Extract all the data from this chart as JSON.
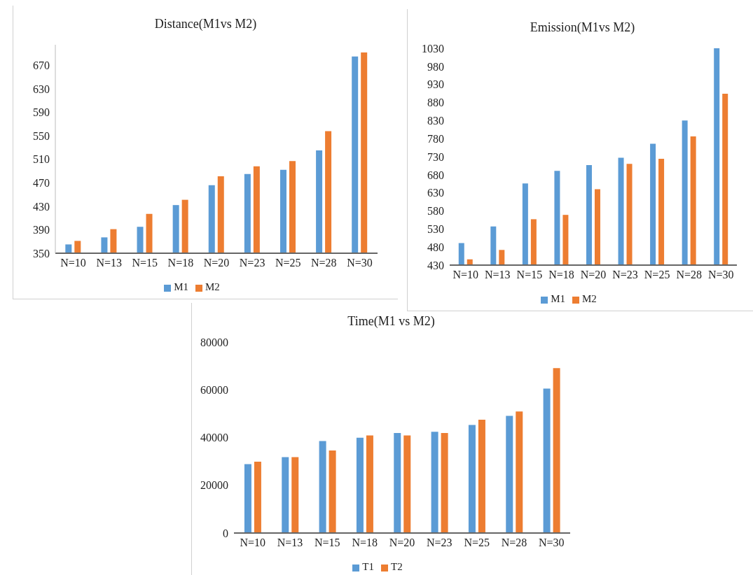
{
  "chart_data": [
    {
      "type": "bar",
      "title": "Distance(M1vs  M2)",
      "categories": [
        "N=10",
        "N=13",
        "N=15",
        "N=18",
        "N=20",
        "N=23",
        "N=25",
        "N=28",
        "N=30"
      ],
      "series": [
        {
          "name": "M1",
          "color": "#5b9bd5",
          "values": [
            365,
            377,
            395,
            432,
            466,
            485,
            492,
            525,
            685
          ]
        },
        {
          "name": "M2",
          "color": "#ed7d31",
          "values": [
            371,
            391,
            417,
            441,
            481,
            498,
            507,
            558,
            692
          ]
        }
      ],
      "ylim": [
        350,
        705
      ],
      "yticks": [
        350,
        390,
        430,
        470,
        510,
        550,
        590,
        630,
        670
      ],
      "grid": false,
      "legend": "bottom"
    },
    {
      "type": "bar",
      "title": "Emission(M1vs  M2)",
      "categories": [
        "N=10",
        "N=13",
        "N=15",
        "N=18",
        "N=20",
        "N=23",
        "N=25",
        "N=28",
        "N=30"
      ],
      "series": [
        {
          "name": "M1",
          "color": "#5b9bd5",
          "values": [
            491,
            537,
            656,
            691,
            707,
            727,
            766,
            830,
            1030
          ]
        },
        {
          "name": "M2",
          "color": "#ed7d31",
          "values": [
            446,
            472,
            557,
            569,
            640,
            710,
            724,
            786,
            904
          ]
        }
      ],
      "ylim": [
        430,
        1030
      ],
      "yticks": [
        430,
        480,
        530,
        580,
        630,
        680,
        730,
        780,
        830,
        880,
        930,
        980,
        1030
      ],
      "grid": false,
      "legend": "bottom"
    },
    {
      "type": "bar",
      "title": "Time(M1  vs M2)",
      "categories": [
        "N=10",
        "N=13",
        "N=15",
        "N=18",
        "N=20",
        "N=23",
        "N=25",
        "N=28",
        "N=30"
      ],
      "series": [
        {
          "name": "T1",
          "color": "#5b9bd5",
          "values": [
            28900,
            31800,
            38500,
            39900,
            41900,
            42400,
            45300,
            49100,
            60500
          ]
        },
        {
          "name": "T2",
          "color": "#ed7d31",
          "values": [
            29900,
            31800,
            34600,
            40900,
            40900,
            41900,
            47500,
            50900,
            69100
          ]
        }
      ],
      "ylim": [
        0,
        80000
      ],
      "yticks": [
        0,
        20000,
        40000,
        60000,
        80000
      ],
      "grid": false,
      "legend": "bottom"
    }
  ]
}
